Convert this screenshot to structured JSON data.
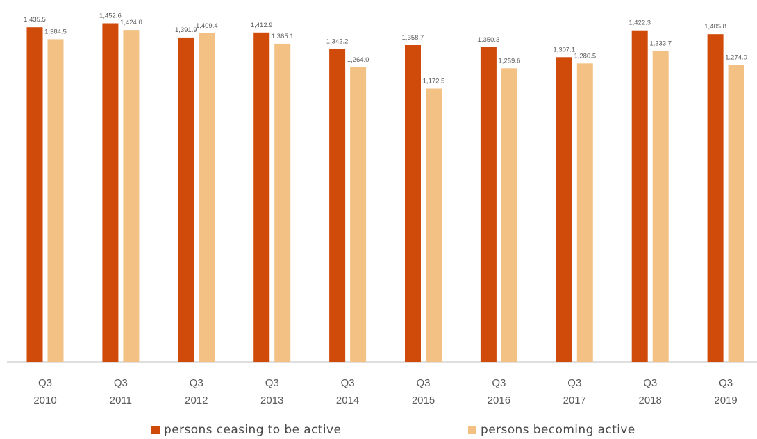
{
  "colors": {
    "series_1": "#d04a0a",
    "series_2": "#f4c185",
    "axis": "#bfbfbf",
    "text": "#5a5a5a"
  },
  "chart_data": {
    "type": "bar",
    "categories": [
      [
        "Q3",
        "2010"
      ],
      [
        "Q3",
        "2011"
      ],
      [
        "Q3",
        "2012"
      ],
      [
        "Q3",
        "2013"
      ],
      [
        "Q3",
        "2014"
      ],
      [
        "Q3",
        "2015"
      ],
      [
        "Q3",
        "2016"
      ],
      [
        "Q3",
        "2017"
      ],
      [
        "Q3",
        "2018"
      ],
      [
        "Q3",
        "2019"
      ]
    ],
    "series": [
      {
        "name": "persons ceasing to be active",
        "values": [
          1435.5,
          1452.6,
          1391.9,
          1412.9,
          1342.2,
          1358.7,
          1350.3,
          1307.1,
          1422.3,
          1405.8
        ],
        "labels": [
          "1,435.5",
          "1,452.6",
          "1,391.9",
          "1,412.9",
          "1,342.2",
          "1,358.7",
          "1,350.3",
          "1,307.1",
          "1,422.3",
          "1,405.8"
        ]
      },
      {
        "name": "persons becoming active",
        "values": [
          1384.5,
          1424.0,
          1409.4,
          1365.1,
          1264.0,
          1172.5,
          1259.6,
          1280.5,
          1333.7,
          1274.0
        ],
        "labels": [
          "1,384.5",
          "1,424.0",
          "1,409.4",
          "1,365.1",
          "1,264.0",
          "1,172.5",
          "1,259.6",
          "1,280.5",
          "1,333.7",
          "1,274.0"
        ]
      }
    ],
    "title": "",
    "xlabel": "",
    "ylabel": "",
    "ylim": [
      0,
      1500
    ],
    "grid": false,
    "legend_position": "bottom"
  }
}
